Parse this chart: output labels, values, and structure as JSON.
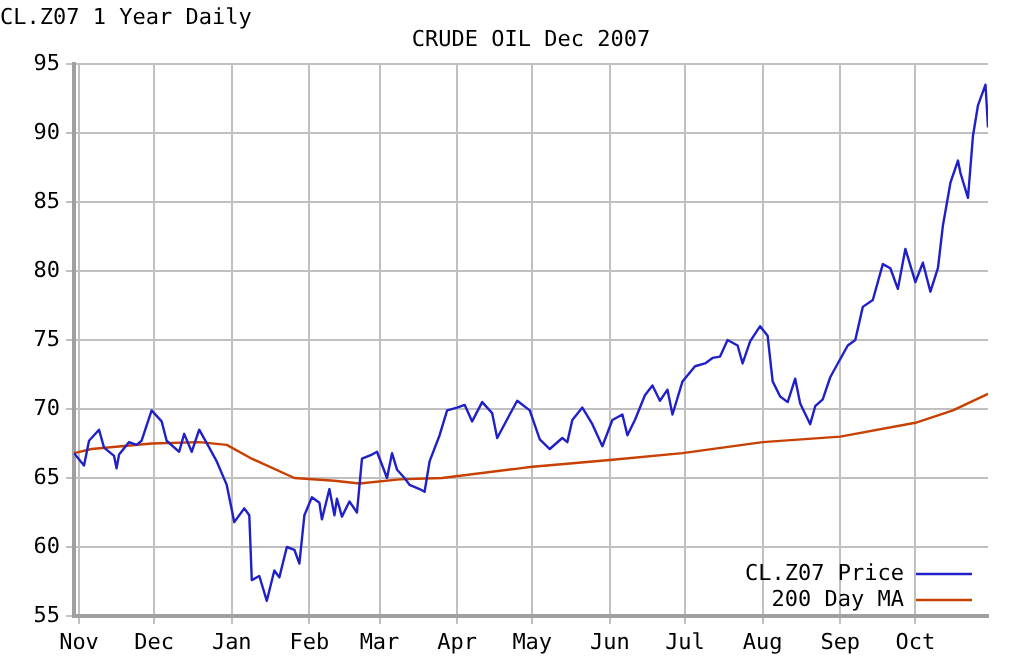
{
  "chart_data": {
    "type": "line",
    "title": "CRUDE OIL Dec 2007",
    "subtitle": "CL.Z07 1 Year Daily",
    "xlim": [
      "2006-10-30",
      "2007-10-30"
    ],
    "xticks": [
      {
        "value": "2006-11-01",
        "label": "Nov"
      },
      {
        "value": "2006-12-01",
        "label": "Dec"
      },
      {
        "value": "2007-01-01",
        "label": "Jan"
      },
      {
        "value": "2007-02-01",
        "label": "Feb"
      },
      {
        "value": "2007-03-01",
        "label": "Mar"
      },
      {
        "value": "2007-04-01",
        "label": "Apr"
      },
      {
        "value": "2007-05-01",
        "label": "May"
      },
      {
        "value": "2007-06-01",
        "label": "Jun"
      },
      {
        "value": "2007-07-01",
        "label": "Jul"
      },
      {
        "value": "2007-08-01",
        "label": "Aug"
      },
      {
        "value": "2007-09-01",
        "label": "Sep"
      },
      {
        "value": "2007-10-01",
        "label": "Oct"
      }
    ],
    "ylim": [
      55,
      95
    ],
    "yticks": [
      55,
      60,
      65,
      70,
      75,
      80,
      85,
      90,
      95
    ],
    "grid": true,
    "legend": "bottom right",
    "marker": "none",
    "line_style": "solid",
    "series": [
      {
        "name": "CL.Z07 Price",
        "color": "#2020c8",
        "x": [
          "2006-10-30",
          "2006-11-03",
          "2006-11-05",
          "2006-11-09",
          "2006-11-11",
          "2006-11-15",
          "2006-11-16",
          "2006-11-17",
          "2006-11-21",
          "2006-11-24",
          "2006-11-26",
          "2006-11-30",
          "2006-12-04",
          "2006-12-06",
          "2006-12-11",
          "2006-12-13",
          "2006-12-16",
          "2006-12-19",
          "2006-12-23",
          "2006-12-26",
          "2006-12-30",
          "2007-01-02",
          "2007-01-06",
          "2007-01-08",
          "2007-01-09",
          "2007-01-12",
          "2007-01-15",
          "2007-01-18",
          "2007-01-20",
          "2007-01-23",
          "2007-01-26",
          "2007-01-28",
          "2007-01-30",
          "2007-02-02",
          "2007-02-05",
          "2007-02-06",
          "2007-02-09",
          "2007-02-11",
          "2007-02-12",
          "2007-02-14",
          "2007-02-17",
          "2007-02-20",
          "2007-02-22",
          "2007-02-26",
          "2007-02-28",
          "2007-03-04",
          "2007-03-06",
          "2007-03-08",
          "2007-03-11",
          "2007-03-13",
          "2007-03-17",
          "2007-03-19",
          "2007-03-21",
          "2007-03-25",
          "2007-03-28",
          "2007-04-01",
          "2007-04-04",
          "2007-04-07",
          "2007-04-11",
          "2007-04-15",
          "2007-04-17",
          "2007-04-22",
          "2007-04-25",
          "2007-04-30",
          "2007-05-04",
          "2007-05-08",
          "2007-05-13",
          "2007-05-15",
          "2007-05-17",
          "2007-05-21",
          "2007-05-25",
          "2007-05-29",
          "2007-06-02",
          "2007-06-06",
          "2007-06-08",
          "2007-06-11",
          "2007-06-15",
          "2007-06-18",
          "2007-06-21",
          "2007-06-24",
          "2007-06-26",
          "2007-06-30",
          "2007-07-05",
          "2007-07-09",
          "2007-07-12",
          "2007-07-15",
          "2007-07-18",
          "2007-07-22",
          "2007-07-24",
          "2007-07-27",
          "2007-07-31",
          "2007-08-03",
          "2007-08-05",
          "2007-08-08",
          "2007-08-11",
          "2007-08-14",
          "2007-08-16",
          "2007-08-20",
          "2007-08-22",
          "2007-08-25",
          "2007-08-28",
          "2007-08-31",
          "2007-09-04",
          "2007-09-07",
          "2007-09-10",
          "2007-09-14",
          "2007-09-18",
          "2007-09-21",
          "2007-09-24",
          "2007-09-27",
          "2007-10-01",
          "2007-10-04",
          "2007-10-07",
          "2007-10-10",
          "2007-10-12",
          "2007-10-15",
          "2007-10-18",
          "2007-10-19",
          "2007-10-22",
          "2007-10-24",
          "2007-10-26",
          "2007-10-29",
          "2007-10-30"
        ],
        "values": [
          66.8,
          65.9,
          67.7,
          68.5,
          67.2,
          66.6,
          65.7,
          66.7,
          67.6,
          67.4,
          67.7,
          69.9,
          69.1,
          67.7,
          66.9,
          68.2,
          66.9,
          68.5,
          67.2,
          66.2,
          64.5,
          61.8,
          62.8,
          62.3,
          57.6,
          57.9,
          56.1,
          58.3,
          57.8,
          60.0,
          59.8,
          58.8,
          62.3,
          63.6,
          63.2,
          62.0,
          64.2,
          62.3,
          63.5,
          62.2,
          63.3,
          62.5,
          66.4,
          66.7,
          66.9,
          65.0,
          66.8,
          65.6,
          65.0,
          64.5,
          64.2,
          64.0,
          66.2,
          68.1,
          69.9,
          70.1,
          70.3,
          69.1,
          70.5,
          69.7,
          67.9,
          69.6,
          70.6,
          69.9,
          67.8,
          67.1,
          67.9,
          67.6,
          69.2,
          70.1,
          68.9,
          67.3,
          69.2,
          69.6,
          68.1,
          69.2,
          71.0,
          71.7,
          70.6,
          71.4,
          69.6,
          72.0,
          73.1,
          73.3,
          73.7,
          73.8,
          75.0,
          74.6,
          73.3,
          74.9,
          76.0,
          75.3,
          72.0,
          70.9,
          70.5,
          72.2,
          70.4,
          68.9,
          70.2,
          70.7,
          72.3,
          73.3,
          74.6,
          75.0,
          77.4,
          77.9,
          80.5,
          80.2,
          78.7,
          81.6,
          79.2,
          80.6,
          78.5,
          80.2,
          83.3,
          86.4,
          88.0,
          87.1,
          85.3,
          89.8,
          92.0,
          93.5,
          90.4
        ]
      },
      {
        "name": "200 Day MA",
        "color": "#c84000",
        "x": [
          "2006-10-30",
          "2006-11-06",
          "2006-11-30",
          "2006-12-19",
          "2006-12-30",
          "2007-01-09",
          "2007-01-26",
          "2007-02-11",
          "2007-02-21",
          "2007-03-09",
          "2007-03-26",
          "2007-04-26",
          "2007-04-30",
          "2007-06-01",
          "2007-06-30",
          "2007-08-01",
          "2007-09-01",
          "2007-10-01",
          "2007-10-16",
          "2007-10-30"
        ],
        "values": [
          66.8,
          67.1,
          67.5,
          67.6,
          67.4,
          66.4,
          65.0,
          64.8,
          64.6,
          64.9,
          65.0,
          65.7,
          65.8,
          66.3,
          66.8,
          67.6,
          68.0,
          69.0,
          69.9,
          71.1
        ]
      }
    ]
  }
}
